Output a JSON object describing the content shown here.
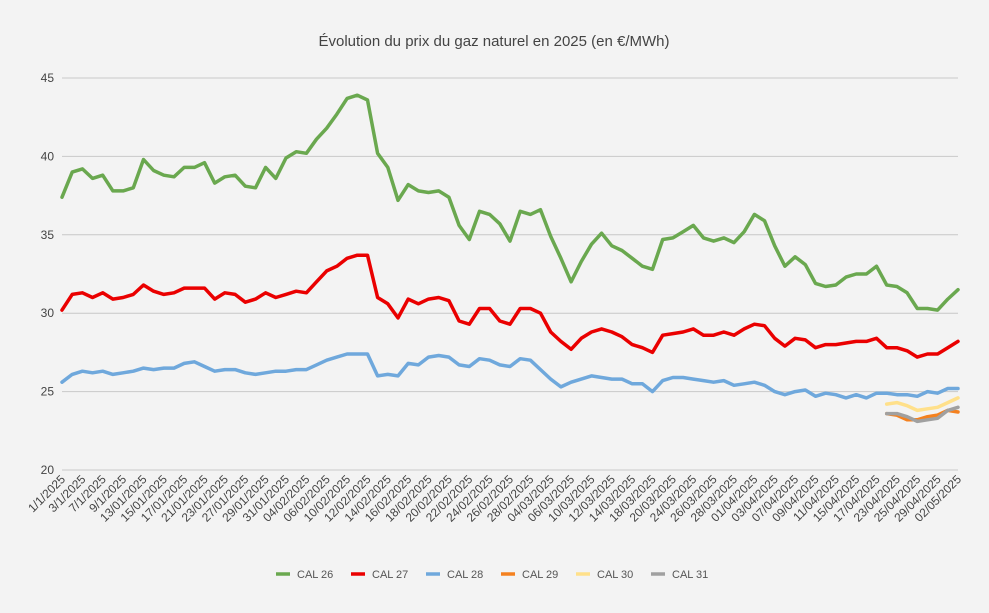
{
  "chart_data": {
    "type": "line",
    "title": "Évolution du prix du gaz naturel en 2025 (en €/MWh)",
    "xlabel": "",
    "ylabel": "",
    "ylim": [
      20,
      45
    ],
    "yticks": [
      20,
      25,
      30,
      35,
      40,
      45
    ],
    "grid": true,
    "legend_position": "bottom",
    "tick_labels": [
      "1/1/2025",
      "3/1/2025",
      "7/1/2025",
      "9/1/2025",
      "13/01/2025",
      "15/01/2025",
      "17/01/2025",
      "21/01/2025",
      "23/01/2025",
      "27/01/2025",
      "29/01/2025",
      "31/01/2025",
      "04/02/2025",
      "06/02/2025",
      "10/02/2025",
      "12/02/2025",
      "14/02/2025",
      "16/02/2025",
      "18/02/2025",
      "20/02/2025",
      "22/02/2025",
      "24/02/2025",
      "26/02/2025",
      "28/02/2025",
      "04/03/2025",
      "06/03/2025",
      "10/03/2025",
      "12/03/2025",
      "14/03/2025",
      "18/03/2025",
      "20/03/2025",
      "24/03/2025",
      "26/03/2025",
      "28/03/2025",
      "01/04/2025",
      "03/04/2025",
      "07/04/2025",
      "09/04/2025",
      "11/04/2025",
      "15/04/2025",
      "17/04/2025",
      "23/04/2025",
      "25/04/2025",
      "29/04/2025",
      "02/05/2025"
    ],
    "n_points": 89,
    "series": [
      {
        "name": "CAL 26",
        "color": "#6aa84f",
        "start": 0,
        "values": [
          37.4,
          39.0,
          39.2,
          38.6,
          38.8,
          37.8,
          37.8,
          38.0,
          39.8,
          39.1,
          38.8,
          38.7,
          39.3,
          39.3,
          39.6,
          38.3,
          38.7,
          38.8,
          38.1,
          38.0,
          39.3,
          38.6,
          39.9,
          40.3,
          40.2,
          41.1,
          41.8,
          42.7,
          43.7,
          43.9,
          43.6,
          40.2,
          39.3,
          37.2,
          38.2,
          37.8,
          37.7,
          37.8,
          37.4,
          35.6,
          34.7,
          36.5,
          36.3,
          35.7,
          34.6,
          36.5,
          36.3,
          36.6,
          34.9,
          33.5,
          32.0,
          33.3,
          34.4,
          35.1,
          34.3,
          34.0,
          33.5,
          33.0,
          32.8,
          34.7,
          34.8,
          35.2,
          35.6,
          34.8,
          34.6,
          34.8,
          34.5,
          35.2,
          36.3,
          35.9,
          34.3,
          33.0,
          33.6,
          33.1,
          31.9,
          31.7,
          31.8,
          32.3,
          32.5,
          32.5,
          33.0,
          31.8,
          31.7,
          31.3,
          30.3,
          30.3,
          30.2,
          30.9,
          31.5
        ]
      },
      {
        "name": "CAL 27",
        "color": "#ea0000",
        "start": 0,
        "values": [
          30.2,
          31.2,
          31.3,
          31.0,
          31.3,
          30.9,
          31.0,
          31.2,
          31.8,
          31.4,
          31.2,
          31.3,
          31.6,
          31.6,
          31.6,
          30.9,
          31.3,
          31.2,
          30.7,
          30.9,
          31.3,
          31.0,
          31.2,
          31.4,
          31.3,
          32.0,
          32.7,
          33.0,
          33.5,
          33.7,
          33.7,
          31.0,
          30.6,
          29.7,
          30.9,
          30.6,
          30.9,
          31.0,
          30.8,
          29.5,
          29.3,
          30.3,
          30.3,
          29.5,
          29.3,
          30.3,
          30.3,
          30.0,
          28.8,
          28.2,
          27.7,
          28.4,
          28.8,
          29.0,
          28.8,
          28.5,
          28.0,
          27.8,
          27.5,
          28.6,
          28.7,
          28.8,
          29.0,
          28.6,
          28.6,
          28.8,
          28.6,
          29.0,
          29.3,
          29.2,
          28.4,
          27.9,
          28.4,
          28.3,
          27.8,
          28.0,
          28.0,
          28.1,
          28.2,
          28.2,
          28.4,
          27.8,
          27.8,
          27.6,
          27.2,
          27.4,
          27.4,
          27.8,
          28.2
        ]
      },
      {
        "name": "CAL 28",
        "color": "#6fa8dc",
        "start": 0,
        "values": [
          25.6,
          26.1,
          26.3,
          26.2,
          26.3,
          26.1,
          26.2,
          26.3,
          26.5,
          26.4,
          26.5,
          26.5,
          26.8,
          26.9,
          26.6,
          26.3,
          26.4,
          26.4,
          26.2,
          26.1,
          26.2,
          26.3,
          26.3,
          26.4,
          26.4,
          26.7,
          27.0,
          27.2,
          27.4,
          27.4,
          27.4,
          26.0,
          26.1,
          26.0,
          26.8,
          26.7,
          27.2,
          27.3,
          27.2,
          26.7,
          26.6,
          27.1,
          27.0,
          26.7,
          26.6,
          27.1,
          27.0,
          26.4,
          25.8,
          25.3,
          25.6,
          25.8,
          26.0,
          25.9,
          25.8,
          25.8,
          25.5,
          25.5,
          25.0,
          25.7,
          25.9,
          25.9,
          25.8,
          25.7,
          25.6,
          25.7,
          25.4,
          25.5,
          25.6,
          25.4,
          25.0,
          24.8,
          25.0,
          25.1,
          24.7,
          24.9,
          24.8,
          24.6,
          24.8,
          24.6,
          24.9,
          24.9,
          24.8,
          24.8,
          24.7,
          25.0,
          24.9,
          25.2,
          25.2
        ]
      },
      {
        "name": "CAL 29",
        "color": "#f4811f",
        "start": 81,
        "values": [
          23.6,
          23.5,
          23.2,
          23.2,
          23.4,
          23.5,
          23.8,
          23.7
        ]
      },
      {
        "name": "CAL 30",
        "color": "#ffe08a",
        "start": 81,
        "values": [
          24.2,
          24.3,
          24.1,
          23.8,
          23.9,
          24.0,
          24.3,
          24.6
        ]
      },
      {
        "name": "CAL 31",
        "color": "#a0a0a0",
        "start": 81,
        "values": [
          23.6,
          23.6,
          23.4,
          23.1,
          23.2,
          23.3,
          23.8,
          24.0
        ]
      }
    ]
  }
}
